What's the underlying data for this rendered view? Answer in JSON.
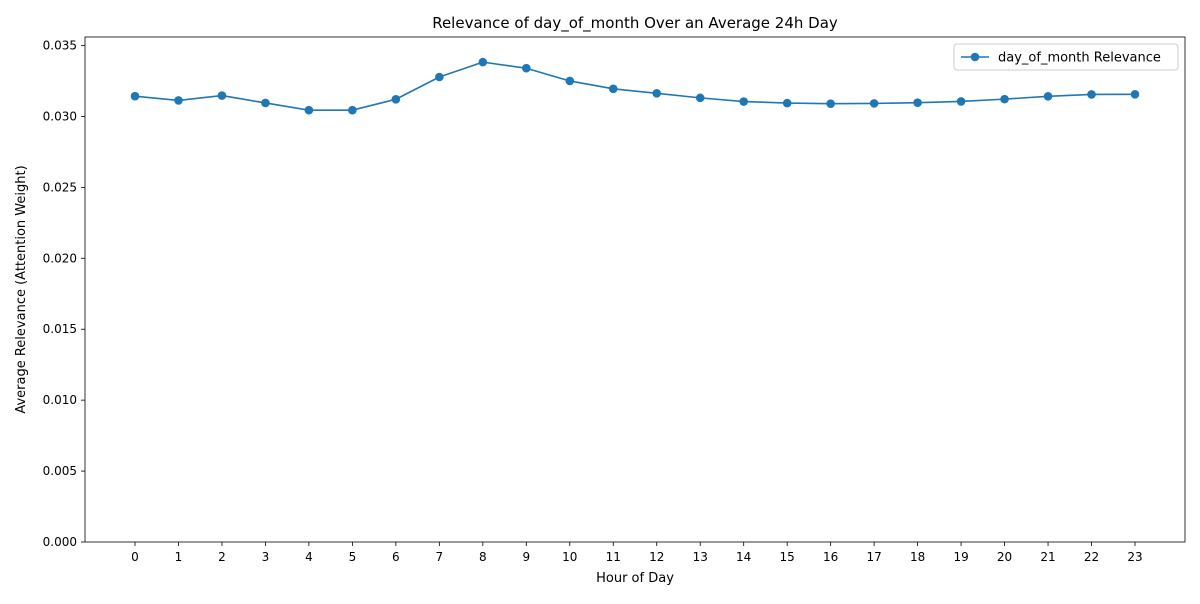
{
  "chart_data": {
    "type": "line",
    "title": "Relevance of day_of_month Over an Average 24h Day",
    "xlabel": "Hour of Day",
    "ylabel": "Average Relevance (Attention Weight)",
    "x": [
      0,
      1,
      2,
      3,
      4,
      5,
      6,
      7,
      8,
      9,
      10,
      11,
      12,
      13,
      14,
      15,
      16,
      17,
      18,
      19,
      20,
      21,
      22,
      23
    ],
    "x_tick_labels": [
      "0",
      "1",
      "2",
      "3",
      "4",
      "5",
      "6",
      "7",
      "8",
      "9",
      "10",
      "11",
      "12",
      "13",
      "14",
      "15",
      "16",
      "17",
      "18",
      "19",
      "20",
      "21",
      "22",
      "23"
    ],
    "y_ticks": [
      0.0,
      0.005,
      0.01,
      0.015,
      0.02,
      0.025,
      0.03,
      0.035
    ],
    "y_tick_labels": [
      "0.000",
      "0.005",
      "0.010",
      "0.015",
      "0.020",
      "0.025",
      "0.030",
      "0.035"
    ],
    "xlim": [
      -1.15,
      24.15
    ],
    "ylim": [
      0,
      0.0356
    ],
    "grid": false,
    "legend_position": "top-right",
    "series": [
      {
        "name": "day_of_month Relevance",
        "color": "#1f77b4",
        "marker": "circle",
        "values": [
          0.03143,
          0.03113,
          0.03147,
          0.03095,
          0.03044,
          0.03044,
          0.03121,
          0.03278,
          0.03383,
          0.0334,
          0.0325,
          0.03195,
          0.03163,
          0.03131,
          0.03105,
          0.03094,
          0.0309,
          0.03092,
          0.03097,
          0.03106,
          0.03122,
          0.03142,
          0.03155,
          0.03156
        ]
      }
    ]
  }
}
